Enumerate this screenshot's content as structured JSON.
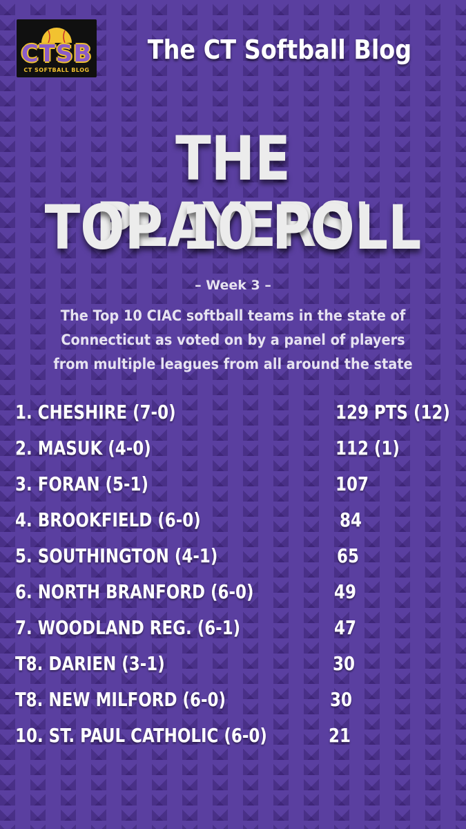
{
  "logo": {
    "text": "CTSB",
    "subtext": "CT SOFTBALL BLOG",
    "icon": "softball-icon"
  },
  "blog_title": "The CT Softball Blog",
  "headline": {
    "line1": "THE PLAYERS'",
    "line2": "TOP 10 POLL"
  },
  "week": "– Week 3 –",
  "description": "The Top 10 CIAC softball teams in the state of Connecticut as voted on by a panel of players from multiple leagues from all around the state",
  "rankings": [
    {
      "team": "1. CHESHIRE (7-0)",
      "points": "129 PTS (12)"
    },
    {
      "team": "2. MASUK (4-0)",
      "points": "112 (1)"
    },
    {
      "team": "3. FORAN (5-1)",
      "points": "107"
    },
    {
      "team": "4. BROOKFIELD (6-0)",
      "points": "84"
    },
    {
      "team": "5. SOUTHINGTON (4-1)",
      "points": "65"
    },
    {
      "team": "6. NORTH BRANFORD (6-0)",
      "points": "49"
    },
    {
      "team": "7. WOODLAND REG. (6-1)",
      "points": "47"
    },
    {
      "team": "T8. DARIEN (3-1)",
      "points": "30"
    },
    {
      "team": "T8. NEW MILFORD (6-0)",
      "points": "30"
    },
    {
      "team": "10. ST. PAUL CATHOLIC (6-0)",
      "points": "21"
    }
  ],
  "colors": {
    "background": "#5a3fa0",
    "logo_purple": "#8a5cc8",
    "logo_gold": "#f2c230",
    "text": "#ffffff"
  }
}
